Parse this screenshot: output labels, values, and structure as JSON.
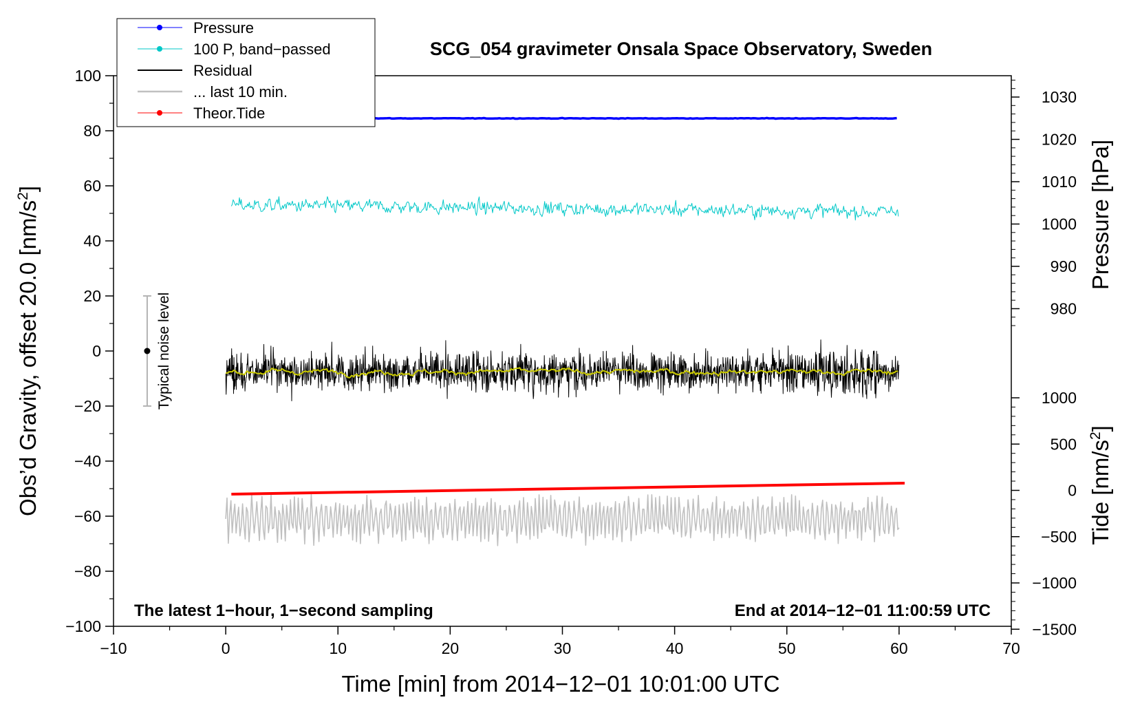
{
  "chart_data": {
    "type": "line",
    "title": "SCG_054 gravimeter Onsala Space Observatory, Sweden",
    "xlabel": "Time [min] from 2014−12−01 10:01:00 UTC",
    "ylabel_left_main": "Obs’d Gravity, offset 20.0 [nm/s",
    "ylabel_left_sup": "2",
    "ylabel_left_end": "]",
    "ylabel_right_pressure": "Pressure [hPa]",
    "ylabel_right_tide_main": "Tide [nm/s",
    "ylabel_right_tide_sup": "2",
    "ylabel_right_tide_end": "]",
    "xlim": [
      -10,
      70
    ],
    "ylim": [
      -100,
      100
    ],
    "pressure_axis_range": [
      975,
      1035
    ],
    "tide_axis_range": [
      -1500,
      1000
    ],
    "x_ticks": [
      {
        "v": -10,
        "label": "−10"
      },
      {
        "v": 0,
        "label": "0"
      },
      {
        "v": 10,
        "label": "10"
      },
      {
        "v": 20,
        "label": "20"
      },
      {
        "v": 30,
        "label": "30"
      },
      {
        "v": 40,
        "label": "40"
      },
      {
        "v": 50,
        "label": "50"
      },
      {
        "v": 60,
        "label": "60"
      },
      {
        "v": 70,
        "label": "70"
      }
    ],
    "y_ticks": [
      {
        "v": -100,
        "label": "−100"
      },
      {
        "v": -80,
        "label": "−80"
      },
      {
        "v": -60,
        "label": "−60"
      },
      {
        "v": -40,
        "label": "−40"
      },
      {
        "v": -20,
        "label": "−20"
      },
      {
        "v": 0,
        "label": "0"
      },
      {
        "v": 20,
        "label": "20"
      },
      {
        "v": 40,
        "label": "40"
      },
      {
        "v": 60,
        "label": "60"
      },
      {
        "v": 80,
        "label": "80"
      },
      {
        "v": 100,
        "label": "100"
      }
    ],
    "pressure_ticks": [
      {
        "v": 980,
        "label": "980"
      },
      {
        "v": 990,
        "label": "990"
      },
      {
        "v": 1000,
        "label": "1000"
      },
      {
        "v": 1010,
        "label": "1010"
      },
      {
        "v": 1020,
        "label": "1020"
      },
      {
        "v": 1030,
        "label": "1030"
      }
    ],
    "tide_ticks": [
      {
        "v": -1500,
        "label": "−1500"
      },
      {
        "v": -1000,
        "label": "−1000"
      },
      {
        "v": -500,
        "label": "−500"
      },
      {
        "v": 0,
        "label": "0"
      },
      {
        "v": 500,
        "label": "500"
      },
      {
        "v": 1000,
        "label": "1000"
      }
    ],
    "legend": [
      {
        "name": "Pressure",
        "color": "#0000ff",
        "marker": true
      },
      {
        "name": "100 P, band−passed",
        "color": "#00c8c8",
        "marker": true
      },
      {
        "name": "Residual",
        "color": "#000000",
        "marker": false
      },
      {
        "name": "... last 10 min.",
        "color": "#c0c0c0",
        "marker": false
      },
      {
        "name": "Theor.Tide",
        "color": "#ff0000",
        "marker": true
      }
    ],
    "legend_position": "top-left",
    "series": [
      {
        "name": "Pressure",
        "color": "#0000ff",
        "x_range": [
          0,
          60
        ],
        "level": 84.5,
        "noise": 0.3,
        "kind": "flat"
      },
      {
        "name": "100 P, band−passed",
        "color": "#00c8c8",
        "x_range": [
          0.5,
          60
        ],
        "start": 53,
        "end": 50.5,
        "noise": 2.0,
        "kind": "noisy"
      },
      {
        "name": "Residual",
        "color": "#000000",
        "x_range": [
          0,
          60
        ],
        "level": -7.5,
        "noise": 6.0,
        "kind": "noisy"
      },
      {
        "name": "Residual (smoothed)",
        "color": "#c8c800",
        "x_range": [
          0,
          60
        ],
        "level": -7.5,
        "noise": 0.9,
        "kind": "smooth"
      },
      {
        "name": "... last 10 min.",
        "color": "#c0c0c0",
        "x_range": [
          0,
          60
        ],
        "level": -61,
        "noise": 6.5,
        "kind": "oscillation"
      },
      {
        "name": "Theor.Tide",
        "color": "#ff0000",
        "x_range": [
          0.5,
          60.5
        ],
        "start": -52,
        "end": -48,
        "kind": "line"
      }
    ],
    "noise_indicator": {
      "label": "Typical noise level",
      "x": -7,
      "center": 0,
      "low": -20,
      "high": 20
    },
    "annotations": {
      "left": "The latest 1−hour, 1−second sampling",
      "right": "End at 2014−12−01 11:00:59 UTC"
    },
    "colors": {
      "axis": "#000000",
      "noise_bar": "#b4b4b4"
    }
  }
}
